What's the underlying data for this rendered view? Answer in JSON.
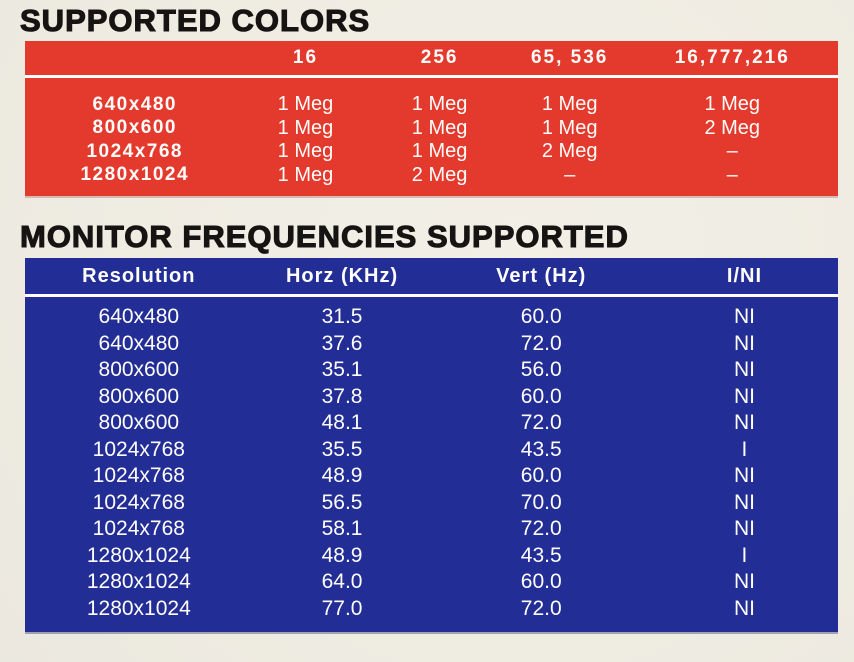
{
  "page": {
    "background_color": "#f0ede4"
  },
  "colors_table": {
    "title": "SUPPORTED COLORS",
    "accent_color": "#e43a2d",
    "text_color": "#fffdfb",
    "column_headers": [
      "",
      "16",
      "256",
      "65, 536",
      "16,777,216"
    ],
    "rows": [
      {
        "resolution": "640x480",
        "cells": [
          "1 Meg",
          "1 Meg",
          "1 Meg",
          "1 Meg"
        ]
      },
      {
        "resolution": "800x600",
        "cells": [
          "1 Meg",
          "1 Meg",
          "1 Meg",
          "2 Meg"
        ]
      },
      {
        "resolution": "1024x768",
        "cells": [
          "1 Meg",
          "1 Meg",
          "2 Meg",
          "–"
        ]
      },
      {
        "resolution": "1280x1024",
        "cells": [
          "1 Meg",
          "2 Meg",
          "–",
          "–"
        ]
      }
    ]
  },
  "frequencies_table": {
    "title": "MONITOR FREQUENCIES SUPPORTED",
    "accent_color": "#222e95",
    "text_color": "#fffdfb",
    "column_headers": [
      "Resolution",
      "Horz (KHz)",
      "Vert (Hz)",
      "I/NI"
    ],
    "rows": [
      [
        "640x480",
        "31.5",
        "60.0",
        "NI"
      ],
      [
        "640x480",
        "37.6",
        "72.0",
        "NI"
      ],
      [
        "800x600",
        "35.1",
        "56.0",
        "NI"
      ],
      [
        "800x600",
        "37.8",
        "60.0",
        "NI"
      ],
      [
        "800x600",
        "48.1",
        "72.0",
        "NI"
      ],
      [
        "1024x768",
        "35.5",
        "43.5",
        "I"
      ],
      [
        "1024x768",
        "48.9",
        "60.0",
        "NI"
      ],
      [
        "1024x768",
        "56.5",
        "70.0",
        "NI"
      ],
      [
        "1024x768",
        "58.1",
        "72.0",
        "NI"
      ],
      [
        "1280x1024",
        "48.9",
        "43.5",
        "I"
      ],
      [
        "1280x1024",
        "64.0",
        "60.0",
        "NI"
      ],
      [
        "1280x1024",
        "77.0",
        "72.0",
        "NI"
      ]
    ]
  }
}
